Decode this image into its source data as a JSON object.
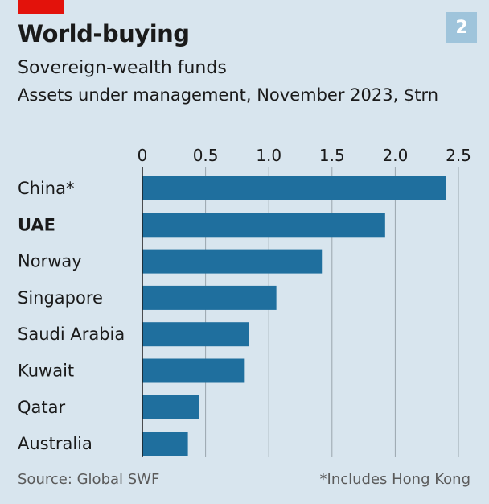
{
  "header": {
    "title": "World-buying",
    "subtitle": "Sovereign-wealth funds",
    "description": "Assets under management, November 2023, $trn",
    "badge": "2"
  },
  "footer": {
    "source": "Source: Global SWF",
    "footnote": "*Includes Hong Kong"
  },
  "colors": {
    "bar": "#1f6f9e",
    "background": "#d8e5ee",
    "grid": "#9aa6ad",
    "tag": "#e3120b"
  },
  "chart_data": {
    "type": "bar",
    "orientation": "horizontal",
    "categories": [
      "China*",
      "UAE",
      "Norway",
      "Singapore",
      "Saudi Arabia",
      "Kuwait",
      "Qatar",
      "Australia"
    ],
    "highlighted_category": "UAE",
    "values": [
      2.4,
      1.92,
      1.42,
      1.06,
      0.84,
      0.81,
      0.45,
      0.36
    ],
    "xlim": [
      0,
      2.5
    ],
    "xticks": [
      "0",
      "0.5",
      "1.0",
      "1.5",
      "2.0",
      "2.5"
    ],
    "xtick_values": [
      0,
      0.5,
      1.0,
      1.5,
      2.0,
      2.5
    ],
    "grid": true,
    "axis_position": "top"
  }
}
